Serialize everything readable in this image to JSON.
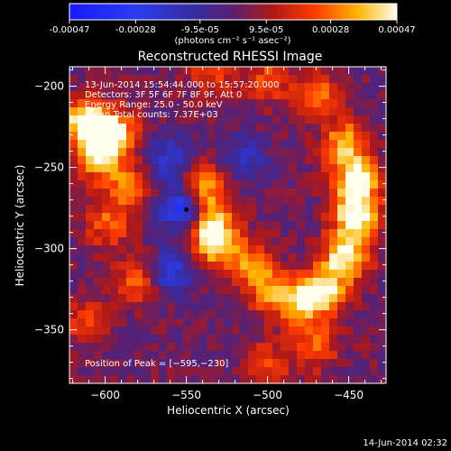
{
  "chart_data": {
    "type": "heatmap",
    "title": "Reconstructed RHESSI Image",
    "colorbar": {
      "tick_labels": [
        "-0.00047",
        "-0.00028",
        "-9.5e-05",
        "9.5e-05",
        "0.00028",
        "0.00047"
      ],
      "tick_values": [
        -0.00047,
        -0.00028,
        -9.5e-05,
        9.5e-05,
        0.00028,
        0.00047
      ],
      "range": [
        -0.00047,
        0.00047
      ],
      "units_label": "(photons cm⁻² s⁻¹ asec⁻²)"
    },
    "xlabel": "Heliocentric X (arcsec)",
    "ylabel": "Heliocentric Y (arcsec)",
    "xlim": [
      -622,
      -427
    ],
    "ylim": [
      -383,
      -188
    ],
    "x_ticks": [
      -600,
      -550,
      -500,
      -450
    ],
    "x_tick_labels": [
      "−600",
      "−550",
      "−500",
      "−450"
    ],
    "y_ticks": [
      -200,
      -250,
      -300,
      -350
    ],
    "y_tick_labels": [
      "−200",
      "−250",
      "−300",
      "−350"
    ],
    "info_lines": [
      "13-Jun-2014 15:54:44.000 to 15:57:20.000",
      "Detectors: 3F 5F 6F 7F 8F 9F, Att 0",
      "Energy Range: 25.0 - 50.0 keV",
      "Clean    Total counts: 7.37E+03"
    ],
    "peak_label": "Position of Peak = [−595,−230]",
    "peak_position": [
      -595,
      -230
    ],
    "marker": [
      -550,
      -276
    ],
    "sources": [
      {
        "x": -612,
        "y": -222,
        "amp": 1.0
      },
      {
        "x": -595,
        "y": -230,
        "amp": 1.0
      },
      {
        "x": -605,
        "y": -245,
        "amp": 0.7
      },
      {
        "x": -585,
        "y": -262,
        "amp": 0.55
      },
      {
        "x": -598,
        "y": -285,
        "amp": 0.5
      },
      {
        "x": -580,
        "y": -320,
        "amp": 0.55
      },
      {
        "x": -612,
        "y": -345,
        "amp": 0.45
      },
      {
        "x": -540,
        "y": -262,
        "amp": 0.8
      },
      {
        "x": -535,
        "y": -285,
        "amp": 0.85
      },
      {
        "x": -532,
        "y": -300,
        "amp": 0.6
      },
      {
        "x": -512,
        "y": -308,
        "amp": 0.5
      },
      {
        "x": -500,
        "y": -325,
        "amp": 0.55
      },
      {
        "x": -482,
        "y": -333,
        "amp": 0.7
      },
      {
        "x": -465,
        "y": -327,
        "amp": 0.85
      },
      {
        "x": -452,
        "y": -305,
        "amp": 0.95
      },
      {
        "x": -445,
        "y": -280,
        "amp": 1.0
      },
      {
        "x": -445,
        "y": -258,
        "amp": 0.95
      },
      {
        "x": -452,
        "y": -235,
        "amp": 0.7
      },
      {
        "x": -470,
        "y": -205,
        "amp": 0.55
      },
      {
        "x": -500,
        "y": -196,
        "amp": 0.45
      },
      {
        "x": -535,
        "y": -193,
        "amp": 0.4
      },
      {
        "x": -470,
        "y": -360,
        "amp": 0.5
      },
      {
        "x": -500,
        "y": -372,
        "amp": 0.45
      }
    ],
    "negative_regions": [
      {
        "x": -552,
        "y": -275,
        "amp": -0.9
      },
      {
        "x": -560,
        "y": -315,
        "amp": -0.6
      },
      {
        "x": -560,
        "y": -245,
        "amp": -0.5
      },
      {
        "x": -515,
        "y": -245,
        "amp": -0.4
      }
    ]
  },
  "footer": {
    "timestamp": "14-Jun-2014 02:32"
  }
}
